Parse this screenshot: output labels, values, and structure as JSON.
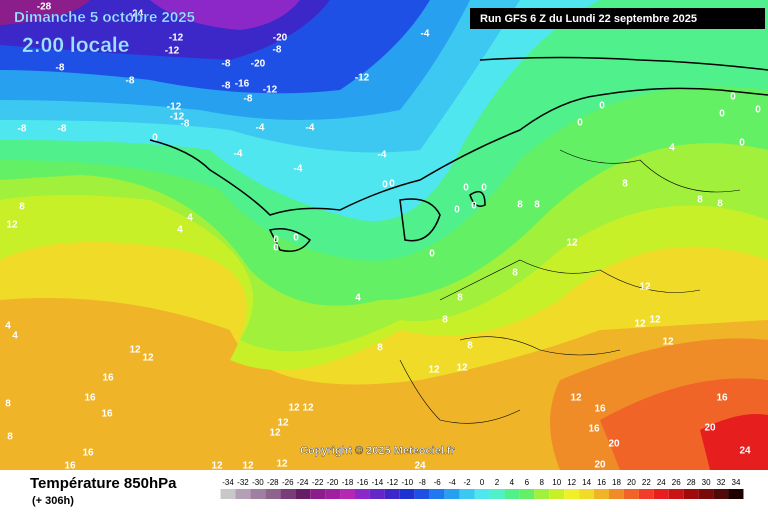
{
  "header": {
    "date": "Dimanche 5 octobre 2025",
    "time": "2:00 locale",
    "run": "Run GFS 6 Z du Lundi 22 septembre 2025"
  },
  "footer": {
    "title": "Température 850hPa",
    "lead": "(+ 306h)",
    "copyright": "Copyright © 2025 Meteociel.fr"
  },
  "scale": {
    "ticks": [
      -34,
      -32,
      -30,
      -28,
      -26,
      -24,
      -22,
      -20,
      -18,
      -16,
      -14,
      -12,
      -10,
      -8,
      -6,
      -4,
      -2,
      0,
      2,
      4,
      6,
      8,
      10,
      12,
      14,
      16,
      18,
      20,
      22,
      24,
      26,
      28,
      30,
      32,
      34
    ],
    "colors": [
      "#c8c8c8",
      "#b4a0b4",
      "#a080a0",
      "#8c648c",
      "#783c78",
      "#641e64",
      "#8c1e8c",
      "#a01ea0",
      "#b428b4",
      "#8c28c8",
      "#6428c8",
      "#3c28c8",
      "#1e32d2",
      "#1e50e6",
      "#1e78f0",
      "#28a0f0",
      "#3cc8f0",
      "#50e6f0",
      "#50f0c8",
      "#50f08c",
      "#64f064",
      "#a0f03c",
      "#c8f028",
      "#f0f028",
      "#f0dc28",
      "#f0b428",
      "#f08c28",
      "#f06428",
      "#f03c28",
      "#e61e1e",
      "#c81414",
      "#a00a0a",
      "#780a0a",
      "#500a0a",
      "#1e0000"
    ]
  },
  "map_labels": [
    -28,
    -24,
    -12,
    -12,
    -20,
    -8,
    -20,
    -8,
    -16,
    -8,
    -12,
    -8,
    -8,
    -8,
    -8,
    -12,
    -12,
    -8,
    -8,
    -4,
    -4,
    -4,
    -4,
    -4,
    -12,
    -4,
    0,
    8,
    12,
    4,
    4,
    4,
    8,
    8,
    8,
    8,
    8,
    8,
    8,
    8,
    8,
    8,
    0,
    0,
    4,
    0,
    0,
    0,
    0,
    12,
    12,
    12,
    12,
    12,
    12,
    12,
    12,
    16,
    16,
    16,
    16,
    16,
    16,
    16,
    20,
    20,
    16,
    24,
    20,
    24,
    12,
    12,
    12,
    12,
    12,
    12,
    12,
    4,
    4,
    8,
    8,
    0,
    0,
    0,
    0,
    0,
    0,
    0,
    0,
    0,
    0,
    12,
    12
  ]
}
